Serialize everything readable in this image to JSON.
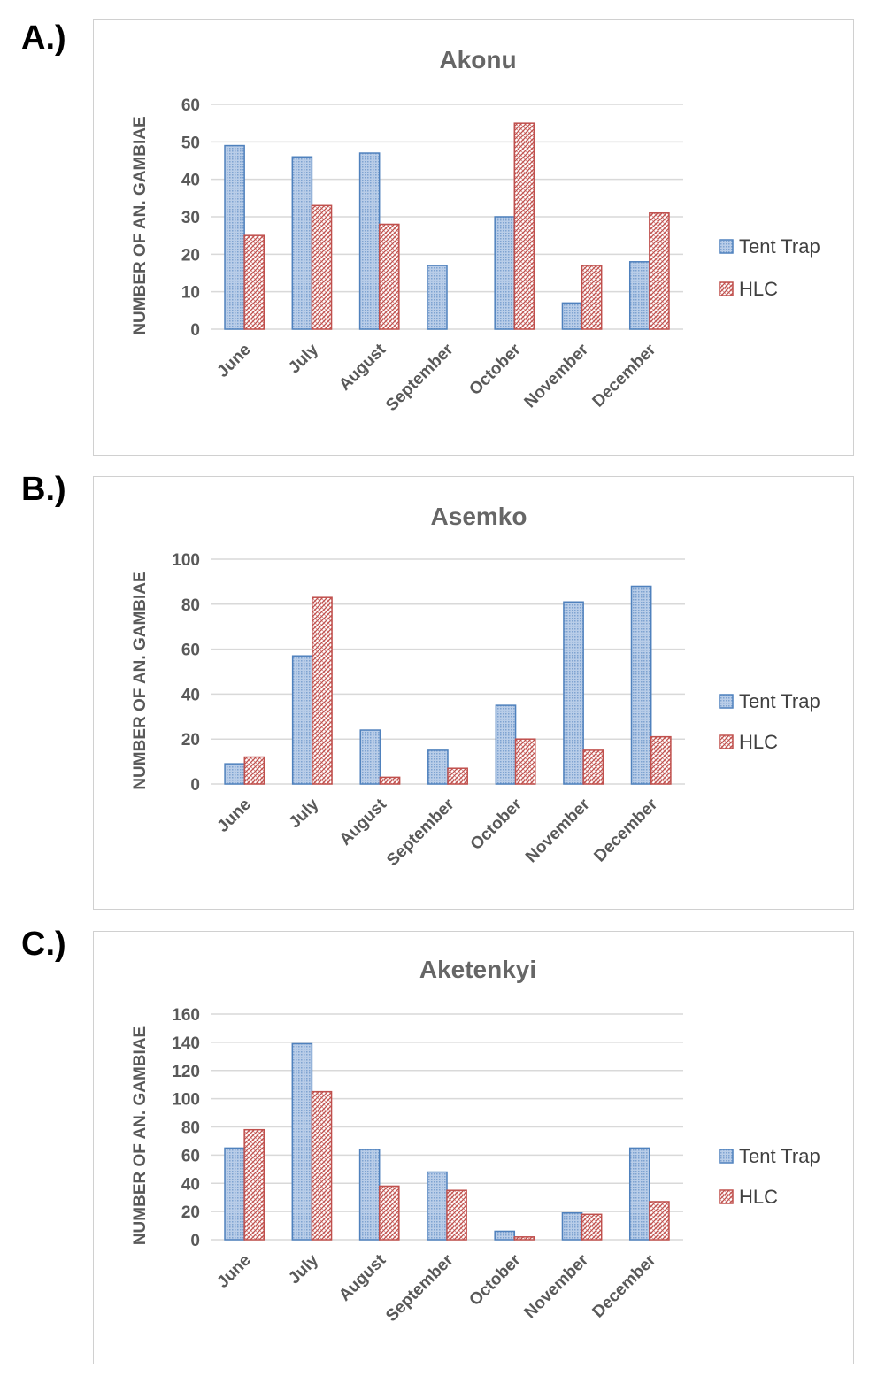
{
  "colors": {
    "tent_trap": "#4f81bd",
    "tent_fill": "#b9cde8",
    "hlc": "#c0504d",
    "hlc_fill": "#f2c4c3",
    "grid": "#d9d9d9",
    "text": "#595959"
  },
  "chart_data": [
    {
      "panel_label": "A.)",
      "type": "bar",
      "title": "Akonu",
      "ylabel": "NUMBER OF AN. GAMBIAE",
      "xlabel": "",
      "categories": [
        "June",
        "July",
        "August",
        "September",
        "October",
        "November",
        "December"
      ],
      "ylim": [
        0,
        60
      ],
      "yticks": [
        "0",
        "10",
        "20",
        "30",
        "40",
        "50",
        "60"
      ],
      "grid": true,
      "legend_position": "right",
      "series": [
        {
          "name": "Tent Trap",
          "values": [
            49,
            46,
            47,
            17,
            30,
            7,
            18
          ]
        },
        {
          "name": "HLC",
          "values": [
            25,
            33,
            28,
            0,
            55,
            17,
            31
          ]
        }
      ]
    },
    {
      "panel_label": "B.)",
      "type": "bar",
      "title": "Asemko",
      "ylabel": "NUMBER OF AN. GAMBIAE",
      "xlabel": "",
      "categories": [
        "June",
        "July",
        "August",
        "September",
        "October",
        "November",
        "December"
      ],
      "ylim": [
        0,
        100
      ],
      "yticks": [
        "0",
        "20",
        "40",
        "60",
        "80",
        "100"
      ],
      "grid": true,
      "legend_position": "right",
      "series": [
        {
          "name": "Tent Trap",
          "values": [
            9,
            57,
            24,
            15,
            35,
            81,
            88
          ]
        },
        {
          "name": "HLC",
          "values": [
            12,
            83,
            3,
            7,
            20,
            15,
            21
          ]
        }
      ]
    },
    {
      "panel_label": "C.)",
      "type": "bar",
      "title": "Aketenkyi",
      "ylabel": "NUMBER OF AN. GAMBIAE",
      "xlabel": "",
      "categories": [
        "June",
        "July",
        "August",
        "September",
        "October",
        "November",
        "December"
      ],
      "ylim": [
        0,
        160
      ],
      "yticks": [
        "0",
        "20",
        "40",
        "60",
        "80",
        "100",
        "120",
        "140",
        "160"
      ],
      "grid": true,
      "legend_position": "right",
      "series": [
        {
          "name": "Tent Trap",
          "values": [
            65,
            139,
            64,
            48,
            6,
            19,
            65
          ]
        },
        {
          "name": "HLC",
          "values": [
            78,
            105,
            38,
            35,
            2,
            18,
            27
          ]
        }
      ]
    }
  ]
}
